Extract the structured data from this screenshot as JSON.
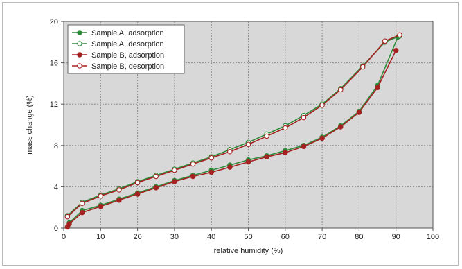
{
  "chart_data": {
    "type": "line",
    "xlabel": "relative humidity (%)",
    "ylabel": "mass change (%)",
    "xlim": [
      0,
      100
    ],
    "ylim": [
      0,
      20
    ],
    "xticks": [
      0,
      10,
      20,
      30,
      40,
      50,
      60,
      70,
      80,
      90,
      100
    ],
    "yticks": [
      0,
      4,
      8,
      12,
      16,
      20
    ],
    "grid": true,
    "plot_background": "#d8d8d8",
    "legend_position": "top-left",
    "series": [
      {
        "name": "Sample A, adsorption",
        "color": "#2e8b3a",
        "marker": "filled-circle",
        "x": [
          1.5,
          5,
          10,
          15,
          20,
          25,
          30,
          35,
          40,
          45,
          50,
          55,
          60,
          65,
          70,
          75,
          80,
          85,
          90.5
        ],
        "y": [
          0.5,
          1.7,
          2.2,
          2.8,
          3.4,
          4.0,
          4.6,
          5.1,
          5.6,
          6.1,
          6.6,
          7.0,
          7.5,
          8.0,
          8.8,
          9.9,
          11.3,
          13.8,
          18.5
        ]
      },
      {
        "name": "Sample A, desorption",
        "color": "#2e8b3a",
        "marker": "open-circle",
        "x": [
          1,
          5,
          10,
          15,
          20,
          25,
          30,
          35,
          40,
          45,
          50,
          55,
          60,
          65,
          70,
          75,
          81,
          87,
          91
        ],
        "y": [
          1.2,
          2.5,
          3.2,
          3.8,
          4.5,
          5.1,
          5.7,
          6.3,
          6.9,
          7.6,
          8.3,
          9.1,
          9.9,
          10.9,
          12.0,
          13.5,
          15.7,
          18.0,
          18.6
        ]
      },
      {
        "name": "Sample B, adsorption",
        "color": "#a52020",
        "marker": "filled-circle",
        "x": [
          1,
          1.5,
          5,
          10,
          15,
          20,
          25,
          30,
          35,
          40,
          45,
          50,
          55,
          60,
          65,
          70,
          75,
          80,
          85,
          90
        ],
        "y": [
          0.1,
          0.4,
          1.5,
          2.1,
          2.7,
          3.3,
          3.9,
          4.5,
          5.0,
          5.4,
          5.9,
          6.4,
          6.9,
          7.3,
          7.9,
          8.7,
          9.8,
          11.2,
          13.6,
          17.2
        ]
      },
      {
        "name": "Sample B, desorption",
        "color": "#a52020",
        "marker": "open-circle",
        "x": [
          1,
          5,
          10,
          15,
          20,
          25,
          30,
          35,
          40,
          45,
          50,
          55,
          60,
          65,
          70,
          75,
          81,
          87,
          91
        ],
        "y": [
          1.1,
          2.4,
          3.1,
          3.7,
          4.4,
          5.0,
          5.6,
          6.2,
          6.8,
          7.4,
          8.1,
          8.9,
          9.7,
          10.7,
          11.9,
          13.4,
          15.6,
          18.1,
          18.7
        ]
      }
    ]
  }
}
